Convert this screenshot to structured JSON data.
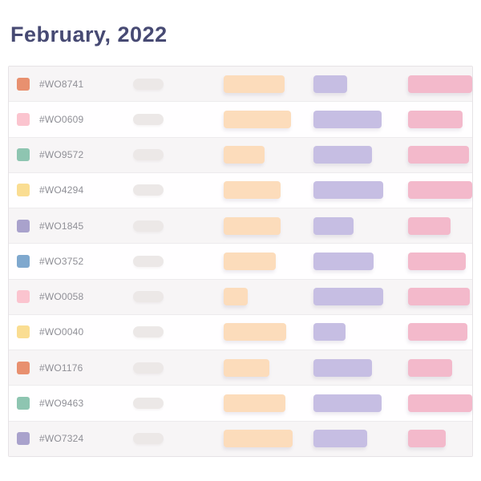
{
  "page": {
    "title": "February, 2022"
  },
  "colors": {
    "title_text": "#474A73",
    "id_text": "#8f8f96",
    "row_alt_bg": "#f7f5f6",
    "row_bg": "#fffeff",
    "table_border": "#e6e3e6",
    "placeholder_pill": "#ece8e7",
    "bars": {
      "orange": "#FCDCBB",
      "purple": "#C6BEE3",
      "pink": "#F3B9CB"
    },
    "swatches": {
      "orange": "#E8906F",
      "pink": "#FBC4CF",
      "green": "#8EC5B1",
      "yellow": "#FADD92",
      "purple": "#A9A2CC",
      "blue": "#7FA8CE"
    }
  },
  "table": {
    "row_count": 11,
    "rows": [
      {
        "id": "#WO8741",
        "swatch_color_name": "orange",
        "swatch": "#E8906F",
        "bars": [
          76,
          42,
          80
        ]
      },
      {
        "id": "#WO0609",
        "swatch_color_name": "pink",
        "swatch": "#FBC4CF",
        "bars": [
          84,
          85,
          68
        ]
      },
      {
        "id": "#WO9572",
        "swatch_color_name": "green",
        "swatch": "#8EC5B1",
        "bars": [
          51,
          73,
          76
        ]
      },
      {
        "id": "#WO4294",
        "swatch_color_name": "yellow",
        "swatch": "#FADD92",
        "bars": [
          71,
          87,
          80
        ]
      },
      {
        "id": "#WO1845",
        "swatch_color_name": "purple",
        "swatch": "#A9A2CC",
        "bars": [
          71,
          50,
          53
        ]
      },
      {
        "id": "#WO3752",
        "swatch_color_name": "blue",
        "swatch": "#7FA8CE",
        "bars": [
          65,
          75,
          72
        ]
      },
      {
        "id": "#WO0058",
        "swatch_color_name": "pink",
        "swatch": "#FBC4CF",
        "bars": [
          30,
          87,
          77
        ]
      },
      {
        "id": "#WO0040",
        "swatch_color_name": "yellow",
        "swatch": "#FADD92",
        "bars": [
          78,
          40,
          74
        ]
      },
      {
        "id": "#WO1176",
        "swatch_color_name": "orange",
        "swatch": "#E8906F",
        "bars": [
          57,
          73,
          55
        ]
      },
      {
        "id": "#WO9463",
        "swatch_color_name": "green",
        "swatch": "#8EC5B1",
        "bars": [
          77,
          85,
          80
        ]
      },
      {
        "id": "#WO7324",
        "swatch_color_name": "purple",
        "swatch": "#A9A2CC",
        "bars": [
          86,
          67,
          47
        ]
      }
    ]
  }
}
